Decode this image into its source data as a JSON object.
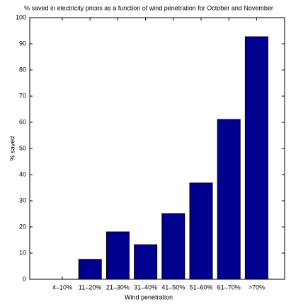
{
  "chart_data": {
    "type": "bar",
    "title": "% saved in electricity prices as a function of wind penetration for October and November",
    "x_label": "Wind penetration",
    "y_label": "% saved",
    "categories": [
      "4–10%",
      "11–20%",
      "21–30%",
      "31–40%",
      "41–50%",
      "51–60%",
      "61–70%",
      ">70%"
    ],
    "values": [
      0,
      7.6,
      18.1,
      13.2,
      25.1,
      36.8,
      61.1,
      92.7
    ],
    "color": "#00008f",
    "ylim": [
      0,
      100
    ],
    "yticks": [
      0,
      10,
      20,
      30,
      40,
      50,
      60,
      70,
      80,
      90,
      100
    ],
    "grid": false
  }
}
